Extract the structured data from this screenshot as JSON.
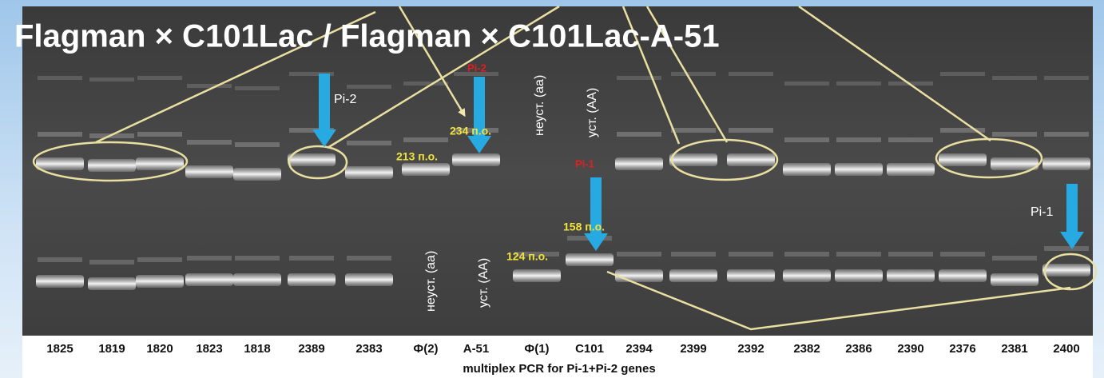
{
  "title": "Flagman × C101Lac / Flagman × C101Lac-A-51",
  "lanes": [
    "1825",
    "1819",
    "1820",
    "1823",
    "1818",
    "2389",
    "2383",
    "Ф(2)",
    "A-51",
    "Ф(1)",
    "C101",
    "2394",
    "2399",
    "2392",
    "2382",
    "2386",
    "2390",
    "2376",
    "2381",
    "2400"
  ],
  "annotations": {
    "pi2_black": "Pi-2",
    "pi2_red": "Pi-2",
    "bp234": "234 п.о.",
    "bp213": "213 п.о.",
    "upper_unstable": "неуст. (аа)",
    "upper_stable": "уст. (АА)",
    "pi1_red": "Pi-1",
    "bp158": "158 п.о.",
    "bp124": "124 п.о.",
    "pi1_black": "Pi-1",
    "lower_unstable": "неуст. (аа)",
    "lower_stable": "уст. (АА)"
  },
  "caption": "multiplex PCR for Pi-1+Pi-2 genes"
}
